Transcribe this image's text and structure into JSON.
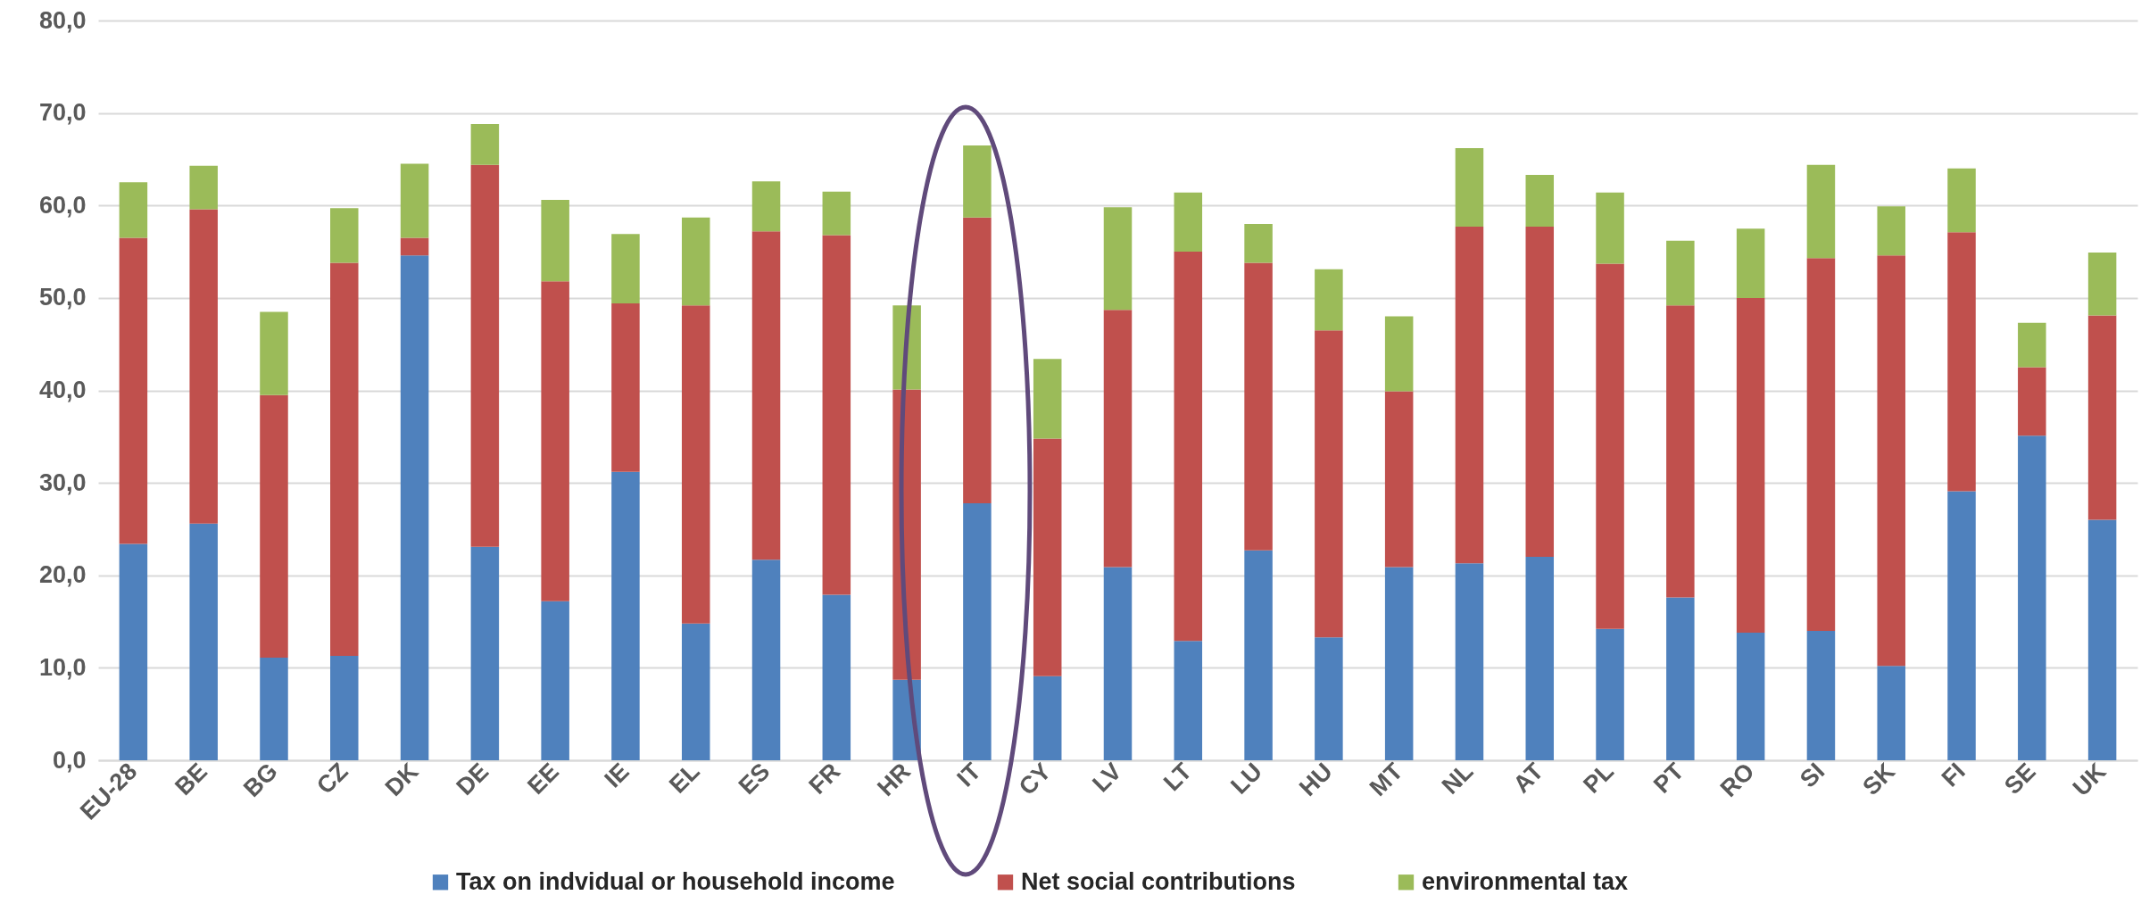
{
  "chart_data": {
    "type": "bar",
    "stacked": true,
    "categories": [
      "EU-28",
      "BE",
      "BG",
      "CZ",
      "DK",
      "DE",
      "EE",
      "IE",
      "EL",
      "ES",
      "FR",
      "HR",
      "IT",
      "CY",
      "LV",
      "LT",
      "LU",
      "HU",
      "MT",
      "NL",
      "AT",
      "PL",
      "PT",
      "RO",
      "SI",
      "SK",
      "FI",
      "SE",
      "UK"
    ],
    "series": [
      {
        "name": "Tax on indvidual or household income",
        "color": "#4f81bd",
        "values": [
          23.4,
          25.6,
          11.1,
          11.3,
          54.6,
          23.1,
          17.2,
          31.2,
          14.8,
          21.7,
          17.9,
          8.7,
          27.8,
          9.1,
          20.9,
          12.9,
          22.7,
          13.3,
          20.9,
          21.3,
          22.0,
          14.2,
          17.6,
          13.8,
          14.0,
          10.2,
          29.1,
          35.1,
          26.0
        ]
      },
      {
        "name": "Net social contributions",
        "color": "#c0504d",
        "values": [
          33.1,
          34.0,
          28.4,
          42.5,
          1.9,
          41.3,
          34.6,
          18.2,
          34.4,
          35.5,
          38.9,
          31.4,
          30.9,
          25.7,
          27.8,
          42.1,
          31.1,
          33.2,
          19.0,
          36.4,
          35.7,
          39.5,
          31.6,
          36.2,
          40.3,
          44.4,
          28.0,
          7.4,
          22.1
        ]
      },
      {
        "name": "environmental tax",
        "color": "#9bbb59",
        "values": [
          6.0,
          4.7,
          9.0,
          5.9,
          8.0,
          4.4,
          8.8,
          7.5,
          9.5,
          5.4,
          4.7,
          9.1,
          7.8,
          8.6,
          11.1,
          6.4,
          4.2,
          6.6,
          8.1,
          8.5,
          5.6,
          7.7,
          7.0,
          7.5,
          10.1,
          5.3,
          6.9,
          4.8,
          6.8
        ]
      }
    ],
    "ylim": [
      0,
      80
    ],
    "yticks": [
      {
        "value": 0,
        "label": "0,0"
      },
      {
        "value": 10,
        "label": "10,0"
      },
      {
        "value": 20,
        "label": "20,0"
      },
      {
        "value": 30,
        "label": "30,0"
      },
      {
        "value": 40,
        "label": "40,0"
      },
      {
        "value": 50,
        "label": "50,0"
      },
      {
        "value": 60,
        "label": "60,0"
      },
      {
        "value": 70,
        "label": "70,0"
      },
      {
        "value": 80,
        "label": "80,0"
      }
    ],
    "grid": "y",
    "legend": "bottom"
  }
}
